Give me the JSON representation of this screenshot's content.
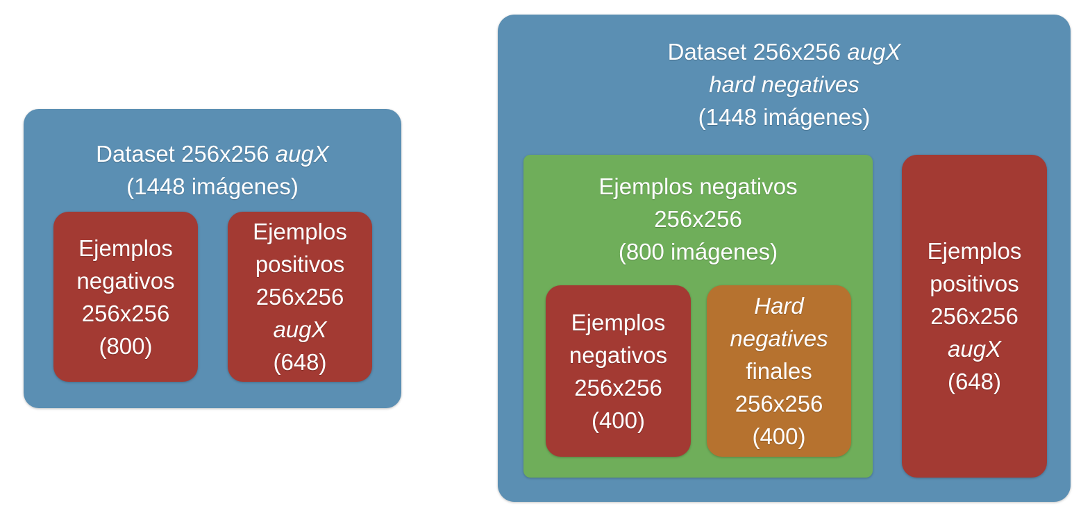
{
  "colors": {
    "outer_blue": "#5b8fb3",
    "red": "#a33a33",
    "green": "#6fae5a",
    "orange": "#b6722f",
    "text": "#ffffff"
  },
  "left_dataset": {
    "title_prefix": "Dataset 256x256 ",
    "title_italic": "augX",
    "count": "(1448 imágenes)",
    "negatives": {
      "line1": "Ejemplos",
      "line2": "negativos",
      "line3": "256x256",
      "line4": "(800)"
    },
    "positives": {
      "line1": "Ejemplos",
      "line2": "positivos",
      "line3": "256x256",
      "line4_italic": "augX",
      "line5": "(648)"
    }
  },
  "right_dataset": {
    "title_prefix": "Dataset 256x256 ",
    "title_italic": "augX",
    "title_line2_italic": "hard negatives",
    "count": "(1448 imágenes)",
    "negatives_group": {
      "line1": "Ejemplos negativos",
      "line2": "256x256",
      "line3": "(800 imágenes)",
      "negatives": {
        "line1": "Ejemplos",
        "line2": "negativos",
        "line3": "256x256",
        "line4": "(400)"
      },
      "hard_negatives": {
        "line1_italic": "Hard",
        "line2_italic": "negatives",
        "line3": "finales",
        "line4": "256x256",
        "line5": "(400)"
      }
    },
    "positives": {
      "line1": "Ejemplos",
      "line2": "positivos",
      "line3": "256x256",
      "line4_italic": "augX",
      "line5": "(648)"
    }
  }
}
